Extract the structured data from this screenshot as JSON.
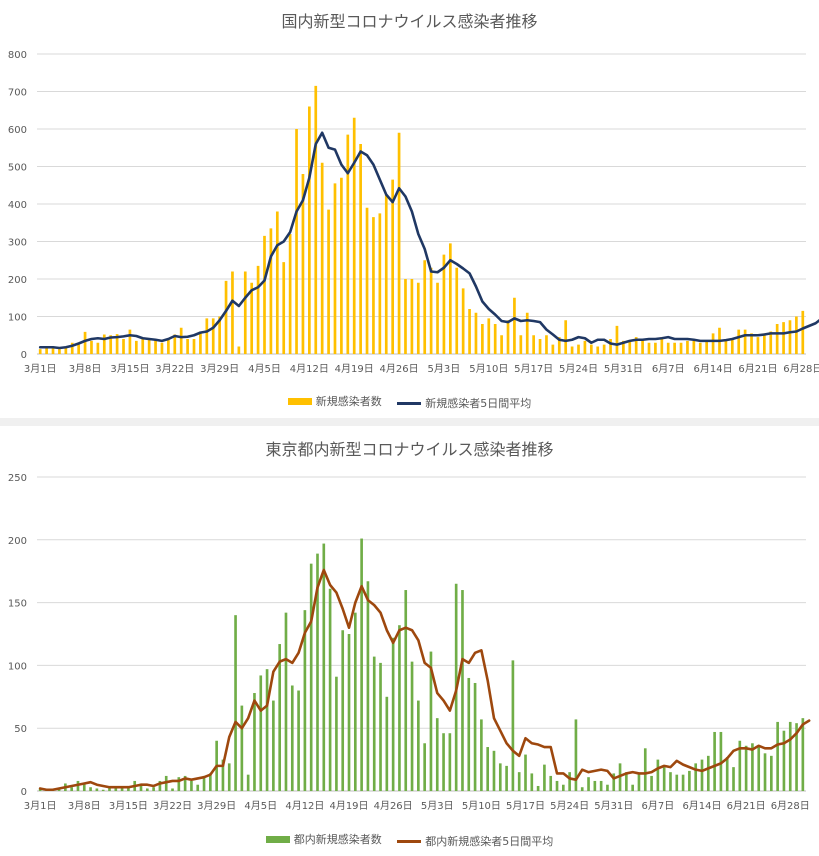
{
  "chart_data": [
    {
      "type": "bar",
      "title": "国内新型コロナウイルス感染者推移",
      "yticks": [
        "0",
        "100",
        "200",
        "300",
        "400",
        "500",
        "600",
        "700",
        "800"
      ],
      "ylim": [
        0,
        800
      ],
      "x_tick_labels": [
        "3月1日",
        "3月8日",
        "3月15日",
        "3月22日",
        "3月29日",
        "4月5日",
        "4月12日",
        "4月19日",
        "4月26日",
        "5月3日",
        "5月10日",
        "5月17日",
        "5月24日",
        "5月31日",
        "6月7日",
        "6月14日",
        "6月21日",
        "6月28日"
      ],
      "grid": true,
      "legend_position": "bottom",
      "series": [
        {
          "name": "新規感染者数",
          "kind": "bar",
          "color": "#FFC000",
          "values": [
            13,
            15,
            15,
            13,
            20,
            30,
            25,
            59,
            35,
            30,
            52,
            50,
            53,
            40,
            65,
            35,
            40,
            40,
            40,
            30,
            40,
            52,
            70,
            40,
            40,
            60,
            95,
            95,
            100,
            195,
            220,
            20,
            220,
            190,
            235,
            315,
            335,
            380,
            245,
            320,
            600,
            480,
            660,
            715,
            510,
            385,
            455,
            470,
            585,
            630,
            560,
            390,
            365,
            375,
            425,
            465,
            590,
            200,
            200,
            190,
            250,
            230,
            190,
            265,
            295,
            230,
            175,
            120,
            110,
            80,
            95,
            80,
            50,
            90,
            150,
            50,
            110,
            50,
            40,
            50,
            25,
            45,
            90,
            20,
            25,
            35,
            25,
            20,
            25,
            40,
            75,
            35,
            35,
            45,
            40,
            30,
            30,
            45,
            30,
            30,
            30,
            35,
            35,
            30,
            35,
            55,
            70,
            40,
            40,
            65,
            65,
            55,
            45,
            55,
            60,
            80,
            85,
            90,
            100,
            115
          ]
        },
        {
          "name": "新規感染者5日間平均",
          "kind": "line",
          "color": "#203864",
          "values": [
            18,
            18,
            18,
            16,
            18,
            22,
            28,
            35,
            40,
            42,
            40,
            44,
            45,
            47,
            50,
            48,
            42,
            40,
            38,
            35,
            40,
            48,
            45,
            46,
            50,
            57,
            60,
            70,
            90,
            115,
            142,
            128,
            150,
            170,
            178,
            196,
            260,
            290,
            300,
            325,
            380,
            410,
            470,
            560,
            590,
            550,
            545,
            505,
            482,
            510,
            540,
            530,
            505,
            465,
            425,
            405,
            442,
            420,
            380,
            320,
            280,
            220,
            218,
            230,
            250,
            240,
            228,
            215,
            180,
            140,
            120,
            105,
            88,
            85,
            95,
            88,
            90,
            88,
            85,
            65,
            52,
            38,
            35,
            38,
            45,
            42,
            30,
            38,
            38,
            28,
            25,
            30,
            35,
            38,
            38,
            40,
            40,
            42,
            45,
            40,
            40,
            40,
            38,
            35,
            35,
            35,
            35,
            37,
            40,
            45,
            50,
            50,
            50,
            52,
            55,
            55,
            55,
            58,
            60,
            68,
            75,
            82,
            95
          ]
        }
      ]
    },
    {
      "type": "bar",
      "title": "東京都内新型コロナウイルス感染者推移",
      "yticks": [
        "0",
        "50",
        "100",
        "150",
        "200",
        "250"
      ],
      "ylim": [
        0,
        250
      ],
      "x_tick_labels": [
        "3月1日",
        "3月8日",
        "3月15日",
        "3月22日",
        "3月29日",
        "4月5日",
        "4月12日",
        "4月19日",
        "4月26日",
        "5月3日",
        "5月10日",
        "5月17日",
        "5月24日",
        "5月31日",
        "6月7日",
        "6月14日",
        "6月21日",
        "6月28日"
      ],
      "grid": true,
      "legend_position": "bottom",
      "series": [
        {
          "name": "都内新規感染者数",
          "kind": "bar",
          "color": "#70AD47",
          "values": [
            2,
            1,
            2,
            2,
            6,
            3,
            8,
            6,
            3,
            2,
            1,
            3,
            3,
            2,
            4,
            8,
            6,
            2,
            3,
            8,
            12,
            2,
            11,
            12,
            8,
            5,
            12,
            14,
            40,
            25,
            22,
            140,
            68,
            13,
            78,
            92,
            97,
            72,
            117,
            142,
            84,
            80,
            144,
            181,
            189,
            197,
            161,
            91,
            128,
            125,
            142,
            201,
            167,
            107,
            102,
            75,
            122,
            132,
            160,
            103,
            72,
            38,
            111,
            58,
            46,
            46,
            165,
            160,
            90,
            86,
            57,
            35,
            32,
            22,
            20,
            104,
            15,
            29,
            14,
            4,
            21,
            12,
            8,
            5,
            15,
            57,
            3,
            11,
            8,
            8,
            5,
            14,
            22,
            15,
            5,
            14,
            34,
            12,
            25,
            19,
            15,
            13,
            13,
            16,
            22,
            25,
            28,
            47,
            47,
            27,
            19,
            40,
            36,
            38,
            35,
            30,
            28,
            55,
            48,
            55,
            54,
            58
          ]
        },
        {
          "name": "都内新規感染者5日間平均",
          "kind": "line",
          "color": "#9E480E",
          "values": [
            2,
            1,
            1,
            2,
            3,
            4,
            5,
            6,
            7,
            5,
            4,
            3,
            3,
            3,
            3,
            4,
            5,
            5,
            4,
            6,
            7,
            8,
            8,
            10,
            9,
            10,
            11,
            13,
            20,
            20,
            43,
            55,
            50,
            58,
            72,
            64,
            68,
            95,
            103,
            105,
            102,
            110,
            126,
            135,
            162,
            176,
            164,
            158,
            145,
            130,
            150,
            163,
            152,
            148,
            142,
            128,
            118,
            128,
            130,
            128,
            120,
            102,
            98,
            78,
            72,
            64,
            80,
            105,
            102,
            110,
            112,
            88,
            58,
            48,
            38,
            32,
            28,
            42,
            38,
            37,
            35,
            35,
            14,
            14,
            10,
            9,
            17,
            15,
            16,
            17,
            16,
            10,
            12,
            14,
            15,
            14,
            14,
            15,
            18,
            20,
            19,
            24,
            21,
            19,
            17,
            16,
            18,
            20,
            22,
            26,
            32,
            34,
            34,
            33,
            36,
            34,
            34,
            37,
            38,
            41,
            46,
            53,
            56
          ]
        }
      ]
    }
  ]
}
